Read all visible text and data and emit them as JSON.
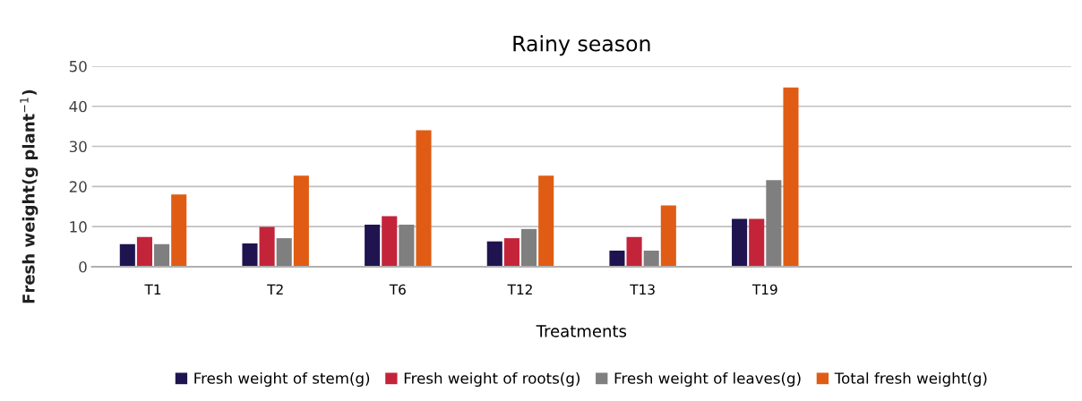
{
  "chart_data": {
    "type": "bar",
    "title": "Rainy season",
    "xlabel": "Treatments",
    "ylabel": "Fresh weight(g plant$^{−1}$)",
    "categories": [
      "T1",
      "T2",
      "T6",
      "T12",
      "T13",
      "T19",
      null,
      null
    ],
    "series": [
      {
        "name": "Fresh weight of stem(g)",
        "color": "#1f1450",
        "values": [
          5.6,
          5.8,
          10.5,
          6.3,
          4.0,
          11.9,
          null,
          null
        ]
      },
      {
        "name": "Fresh weight of roots(g)",
        "color": "#c3243a",
        "values": [
          7.4,
          9.9,
          12.6,
          7.1,
          7.4,
          11.9,
          null,
          null
        ]
      },
      {
        "name": "Fresh weight of leaves(g)",
        "color": "#7f7f7f",
        "values": [
          5.6,
          7.1,
          10.5,
          9.4,
          4.0,
          21.6,
          null,
          null
        ]
      },
      {
        "name": "Total fresh weight(g)",
        "color": "#e05c14",
        "values": [
          18.0,
          22.7,
          34.0,
          22.7,
          15.3,
          44.7,
          null,
          null
        ]
      }
    ],
    "ylim": [
      0,
      50
    ],
    "yticks": [
      0,
      10,
      20,
      30,
      40,
      50
    ],
    "grid": "y",
    "legend": "bottom"
  }
}
